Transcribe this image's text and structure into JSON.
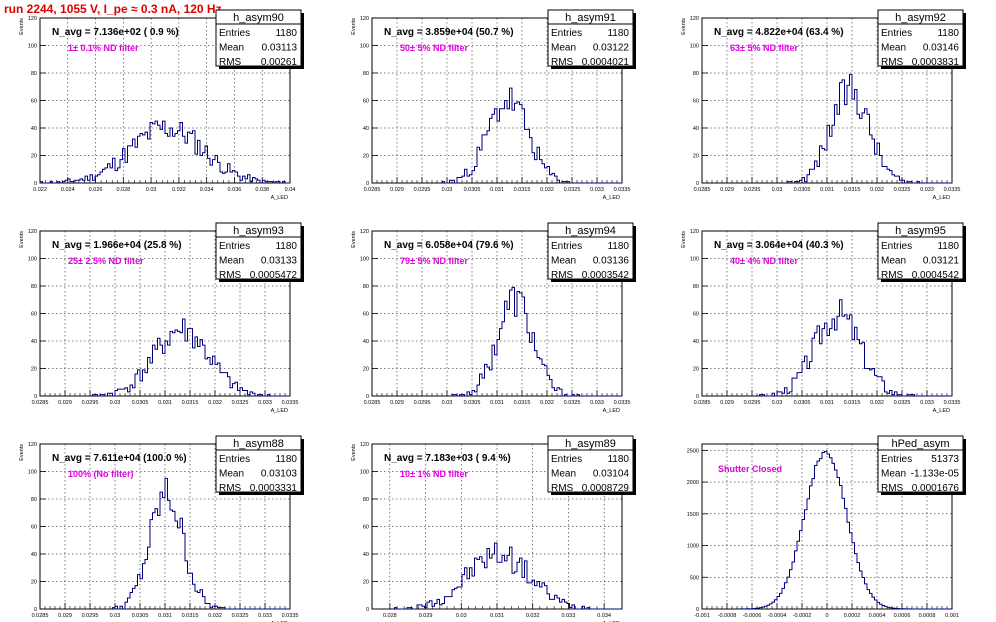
{
  "title": "run 2244,  1055 V, I_pe ≈ 0.3 nA, 120 Hz",
  "colors": {
    "title": "#e00000",
    "hist": "#00007f",
    "annotation": "#e000e0",
    "grid": "#000000"
  },
  "stat_labels": {
    "entries": "Entries",
    "mean": "Mean",
    "rms": "RMS"
  },
  "chart_data": [
    {
      "type": "histogram",
      "name": "h_asym90",
      "stats": {
        "entries": "1180",
        "mean": "0.03113",
        "rms": "0.00261"
      },
      "n_avg": "N_avg = 7.136e+02 ( 0.9 %)",
      "annotation": "1± 0.1% ND filter",
      "ylabel": "Events",
      "xlabel": "A_LED",
      "xlim": [
        0.022,
        0.04
      ],
      "ylim": [
        0,
        120
      ],
      "xticks": [
        0.022,
        0.024,
        0.026,
        0.028,
        0.03,
        0.032,
        0.034,
        0.036,
        0.038,
        0.04
      ],
      "yticks": [
        0,
        20,
        40,
        60,
        80,
        100,
        120
      ],
      "grid": true,
      "mu": 0.03113,
      "sigma": 0.00261,
      "peak": 40,
      "seed": 11
    },
    {
      "type": "histogram",
      "name": "h_asym91",
      "stats": {
        "entries": "1180",
        "mean": "0.03122",
        "rms": "0.0004021"
      },
      "n_avg": "N_avg = 3.859e+04 (50.7 %)",
      "annotation": "50± 5% ND filter",
      "ylabel": "Events",
      "xlabel": "A_LED",
      "xlim": [
        0.0285,
        0.0335
      ],
      "ylim": [
        0,
        120
      ],
      "xticks": [
        0.0285,
        0.029,
        0.0295,
        0.03,
        0.0305,
        0.031,
        0.0315,
        0.032,
        0.0325,
        0.033,
        0.0335
      ],
      "yticks": [
        0,
        20,
        40,
        60,
        80,
        100,
        120
      ],
      "grid": true,
      "mu": 0.03122,
      "sigma": 0.0004021,
      "peak": 60,
      "seed": 23
    },
    {
      "type": "histogram",
      "name": "h_asym92",
      "stats": {
        "entries": "1180",
        "mean": "0.03146",
        "rms": "0.0003831"
      },
      "n_avg": "N_avg = 4.822e+04 (63.4 %)",
      "annotation": "63± 5% ND filter",
      "ylabel": "Events",
      "xlabel": "A_LED",
      "xlim": [
        0.0285,
        0.0335
      ],
      "ylim": [
        0,
        120
      ],
      "xticks": [
        0.0285,
        0.029,
        0.0295,
        0.03,
        0.0305,
        0.031,
        0.0315,
        0.032,
        0.0325,
        0.033,
        0.0335
      ],
      "yticks": [
        0,
        20,
        40,
        60,
        80,
        100,
        120
      ],
      "grid": true,
      "mu": 0.03146,
      "sigma": 0.0003831,
      "peak": 68,
      "seed": 37
    },
    {
      "type": "histogram",
      "name": "h_asym93",
      "stats": {
        "entries": "1180",
        "mean": "0.03133",
        "rms": "0.0005472"
      },
      "n_avg": "N_avg = 1.966e+04 (25.8 %)",
      "annotation": "25± 2.5% ND filter",
      "ylabel": "Events",
      "xlabel": "A_LED",
      "xlim": [
        0.0285,
        0.0335
      ],
      "ylim": [
        0,
        120
      ],
      "xticks": [
        0.0285,
        0.029,
        0.0295,
        0.03,
        0.0305,
        0.031,
        0.0315,
        0.032,
        0.0325,
        0.033,
        0.0335
      ],
      "yticks": [
        0,
        20,
        40,
        60,
        80,
        100,
        120
      ],
      "grid": true,
      "mu": 0.03133,
      "sigma": 0.0005472,
      "peak": 48,
      "seed": 41
    },
    {
      "type": "histogram",
      "name": "h_asym94",
      "stats": {
        "entries": "1180",
        "mean": "0.03136",
        "rms": "0.0003542"
      },
      "n_avg": "N_avg = 6.058e+04 (79.6 %)",
      "annotation": "79± 5% ND filter",
      "ylabel": "Events",
      "xlabel": "A_LED",
      "xlim": [
        0.0285,
        0.0335
      ],
      "ylim": [
        0,
        120
      ],
      "xticks": [
        0.0285,
        0.029,
        0.0295,
        0.03,
        0.0305,
        0.031,
        0.0315,
        0.032,
        0.0325,
        0.033,
        0.0335
      ],
      "yticks": [
        0,
        20,
        40,
        60,
        80,
        100,
        120
      ],
      "grid": true,
      "mu": 0.03136,
      "sigma": 0.0003542,
      "peak": 70,
      "seed": 53
    },
    {
      "type": "histogram",
      "name": "h_asym95",
      "stats": {
        "entries": "1180",
        "mean": "0.03121",
        "rms": "0.0004542"
      },
      "n_avg": "N_avg = 3.064e+04 (40.3 %)",
      "annotation": "40± 4% ND filter",
      "ylabel": "Events",
      "xlabel": "A_LED",
      "xlim": [
        0.0285,
        0.0335
      ],
      "ylim": [
        0,
        120
      ],
      "xticks": [
        0.0285,
        0.029,
        0.0295,
        0.03,
        0.0305,
        0.031,
        0.0315,
        0.032,
        0.0325,
        0.033,
        0.0335
      ],
      "yticks": [
        0,
        20,
        40,
        60,
        80,
        100,
        120
      ],
      "grid": true,
      "mu": 0.03121,
      "sigma": 0.0004542,
      "peak": 60,
      "seed": 67
    },
    {
      "type": "histogram",
      "name": "h_asym88",
      "stats": {
        "entries": "1180",
        "mean": "0.03103",
        "rms": "0.0003331"
      },
      "n_avg": "N_avg = 7.611e+04 (100.0 %)",
      "annotation": "100% (No filter)",
      "ylabel": "Events",
      "xlabel": "A_LED",
      "xlim": [
        0.0285,
        0.0335
      ],
      "ylim": [
        0,
        120
      ],
      "xticks": [
        0.0285,
        0.029,
        0.0295,
        0.03,
        0.0305,
        0.031,
        0.0315,
        0.032,
        0.0325,
        0.033,
        0.0335
      ],
      "yticks": [
        0,
        20,
        40,
        60,
        80,
        100,
        120
      ],
      "grid": true,
      "mu": 0.03103,
      "sigma": 0.0003331,
      "peak": 83,
      "seed": 79
    },
    {
      "type": "histogram",
      "name": "h_asym89",
      "stats": {
        "entries": "1180",
        "mean": "0.03104",
        "rms": "0.0008729"
      },
      "n_avg": "N_avg = 7.183e+03 ( 9.4 %)",
      "annotation": "10± 1% ND filter",
      "ylabel": "Events",
      "xlabel": "A_LED",
      "xlim": [
        0.0275,
        0.0345
      ],
      "ylim": [
        0,
        120
      ],
      "xticks": [
        0.028,
        0.029,
        0.03,
        0.031,
        0.032,
        0.033,
        0.034
      ],
      "yticks": [
        0,
        20,
        40,
        60,
        80,
        100,
        120
      ],
      "grid": true,
      "mu": 0.03104,
      "sigma": 0.0008729,
      "peak": 40,
      "seed": 97
    },
    {
      "type": "histogram",
      "name": "hPed_asym",
      "stats": {
        "entries": "51373",
        "mean": "-1.133e-05",
        "rms": "0.0001676"
      },
      "n_avg": "",
      "annotation": "Shutter Closed",
      "ylabel": "",
      "xlabel": "",
      "xlim": [
        -0.001,
        0.001
      ],
      "ylim": [
        0,
        2600
      ],
      "xticks": [
        -0.001,
        -0.0008,
        -0.0006,
        -0.0004,
        -0.0002,
        0,
        0.0002,
        0.0004,
        0.0006,
        0.0008,
        0.001
      ],
      "yticks": [
        0,
        500,
        1000,
        1500,
        2000,
        2500
      ],
      "grid": true,
      "mu": -1.133e-05,
      "sigma": 0.0001676,
      "peak": 2480,
      "seed": 0
    }
  ]
}
